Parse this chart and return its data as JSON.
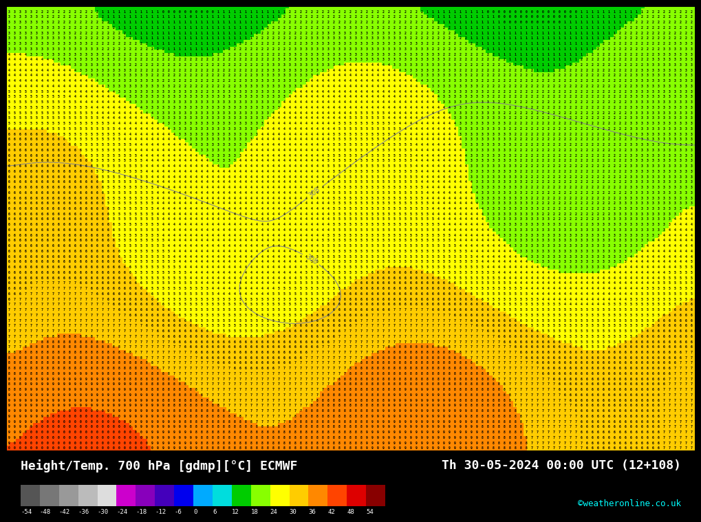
{
  "title_left": "Height/Temp. 700 hPa [gdmp][°C] ECMWF",
  "title_right": "Th 30-05-2024 00:00 UTC (12+108)",
  "credit": "©weatheronline.co.uk",
  "colorbar_levels": [
    -54,
    -48,
    -42,
    -36,
    -30,
    -24,
    -18,
    -12,
    -6,
    0,
    6,
    12,
    18,
    24,
    30,
    36,
    42,
    48,
    54
  ],
  "colorbar_colors": [
    "#808080",
    "#a0a0a0",
    "#c0c0c0",
    "#e0e0e0",
    "#cc00cc",
    "#9900cc",
    "#6600cc",
    "#3300cc",
    "#0000ff",
    "#0066ff",
    "#0099ff",
    "#00ccff",
    "#00ff00",
    "#66ff00",
    "#ffff00",
    "#ffcc00",
    "#ff9900",
    "#ff6600",
    "#ff0000",
    "#cc0000"
  ],
  "background_color": "#000000",
  "fig_width": 10.0,
  "fig_height": 7.33
}
